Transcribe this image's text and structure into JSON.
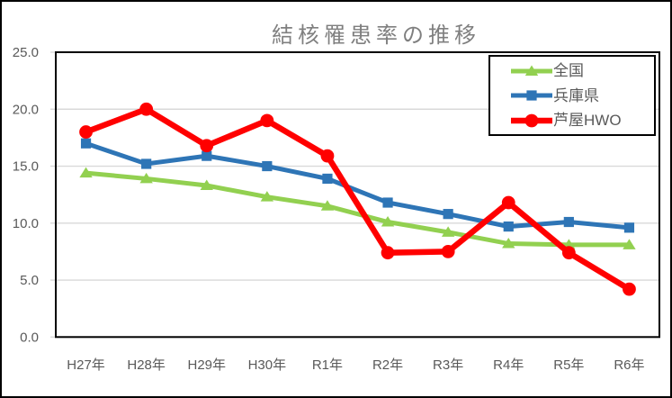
{
  "chart_data": {
    "type": "line",
    "title": "結核罹患率の推移",
    "categories": [
      "H27年",
      "H28年",
      "H29年",
      "H30年",
      "R1年",
      "R2年",
      "R3年",
      "R4年",
      "R5年",
      "R6年"
    ],
    "series": [
      {
        "name": "全国",
        "color": "#92D050",
        "marker": "triangle",
        "line_width": 5,
        "values": [
          14.4,
          13.9,
          13.3,
          12.3,
          11.5,
          10.1,
          9.2,
          8.2,
          8.1,
          8.1
        ]
      },
      {
        "name": "兵庫県",
        "color": "#2E75B6",
        "marker": "square",
        "line_width": 5,
        "values": [
          17.0,
          15.2,
          15.9,
          15.0,
          13.9,
          11.8,
          10.8,
          9.7,
          10.1,
          9.6
        ]
      },
      {
        "name": "芦屋HWO",
        "color": "#FF0000",
        "marker": "circle",
        "line_width": 6.5,
        "values": [
          18.0,
          20.0,
          16.8,
          19.0,
          15.9,
          7.4,
          7.5,
          11.8,
          7.4,
          4.2
        ]
      }
    ],
    "xlabel": "",
    "ylabel": "",
    "ylim": [
      0,
      25
    ],
    "ytick_step": 5,
    "ytick_labels": [
      "0.0",
      "5.0",
      "10.0",
      "15.0",
      "20.0",
      "25.0"
    ],
    "grid": "horizontal",
    "legend_position": "top-right"
  },
  "styles": {
    "background": "#FFFFFF",
    "grid_color": "#D9D9D9",
    "axis_text_color": "#595959",
    "title_color": "#7F7F7F",
    "border_color": "#000000"
  }
}
